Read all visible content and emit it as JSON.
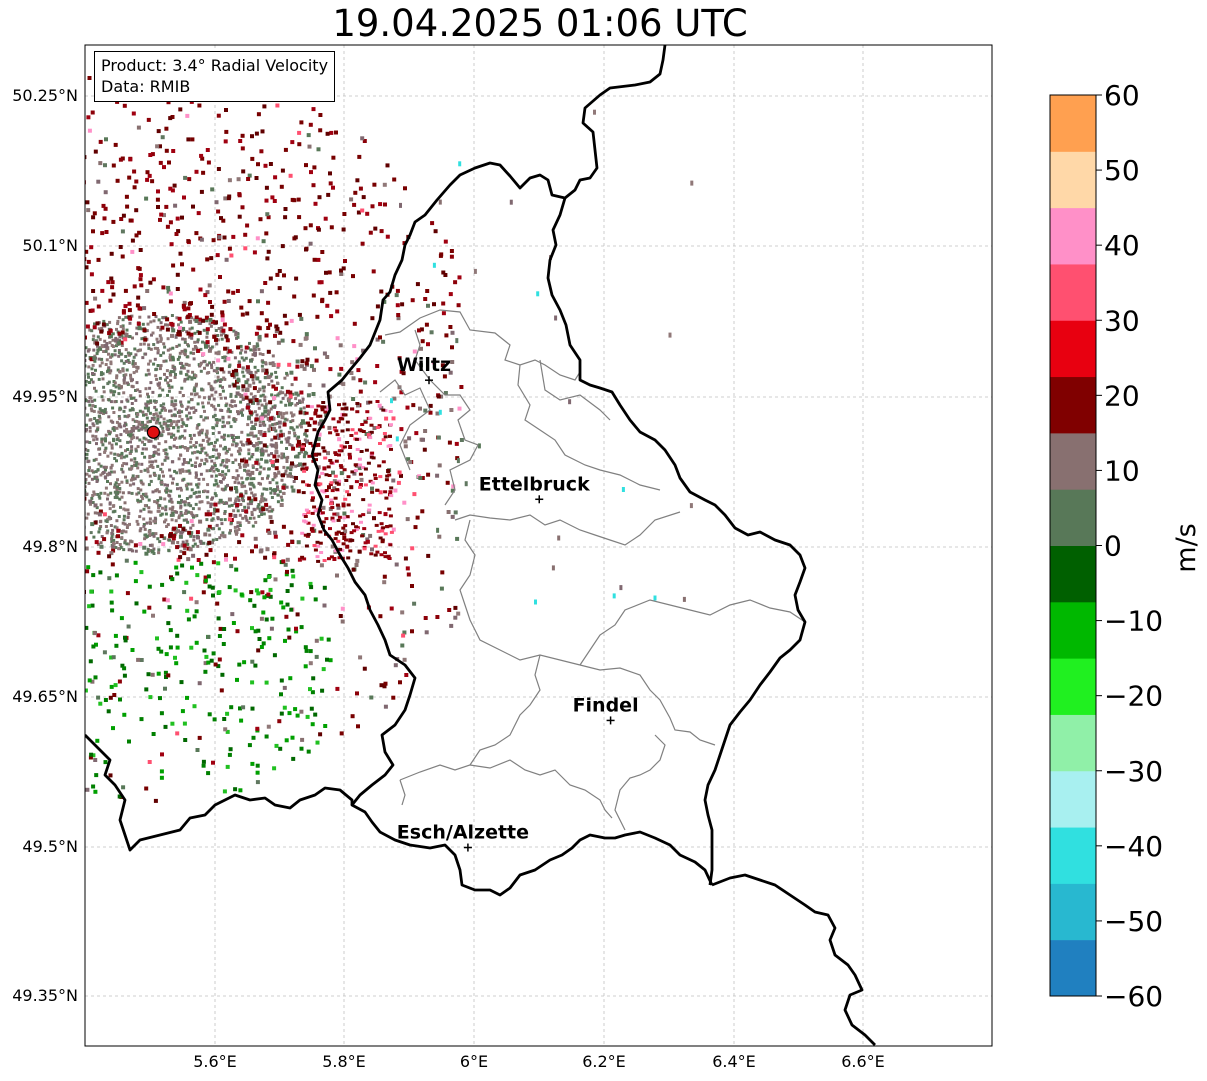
{
  "title": "19.04.2025 01:06 UTC",
  "infobox": {
    "product_label": "Product: 3.4° Radial Velocity",
    "data_label": "Data: RMIB"
  },
  "axes": {
    "lat_ticks": [
      "50.25°N",
      "50.1°N",
      "49.95°N",
      "49.8°N",
      "49.65°N",
      "49.5°N",
      "49.35°N"
    ],
    "lon_ticks": [
      "5.6°E",
      "5.8°E",
      "6°E",
      "6.2°E",
      "6.4°E",
      "6.6°E"
    ]
  },
  "cities": [
    {
      "name": "Wiltz",
      "lon": 5.93,
      "lat": 49.966
    },
    {
      "name": "Ettelbruck",
      "lon": 6.1,
      "lat": 49.847
    },
    {
      "name": "Findel",
      "lon": 6.21,
      "lat": 49.626
    },
    {
      "name": "Esch/Alzette",
      "lon": 5.99,
      "lat": 49.499
    }
  ],
  "radar_site": {
    "lon": 5.505,
    "lat": 49.914,
    "color": "#e01010"
  },
  "colorbar": {
    "unit": "m/s",
    "min": -60,
    "max": 60,
    "tick_labels": [
      "60",
      "50",
      "40",
      "30",
      "20",
      "10",
      "0",
      "−10",
      "−20",
      "−30",
      "−40",
      "−50",
      "−60"
    ],
    "colors": [
      "#2080c0",
      "#28b8d0",
      "#30e0e0",
      "#a8f0f0",
      "#90f0a8",
      "#20f020",
      "#00b800",
      "#006000",
      "#587858",
      "#887070",
      "#800000",
      "#e80010",
      "#ff5070",
      "#ff90c8",
      "#ffd8a8",
      "#ffa050"
    ]
  },
  "colors": {
    "border": "#000000",
    "canton_lines": "#808080",
    "grid": "#c0c0c0"
  }
}
